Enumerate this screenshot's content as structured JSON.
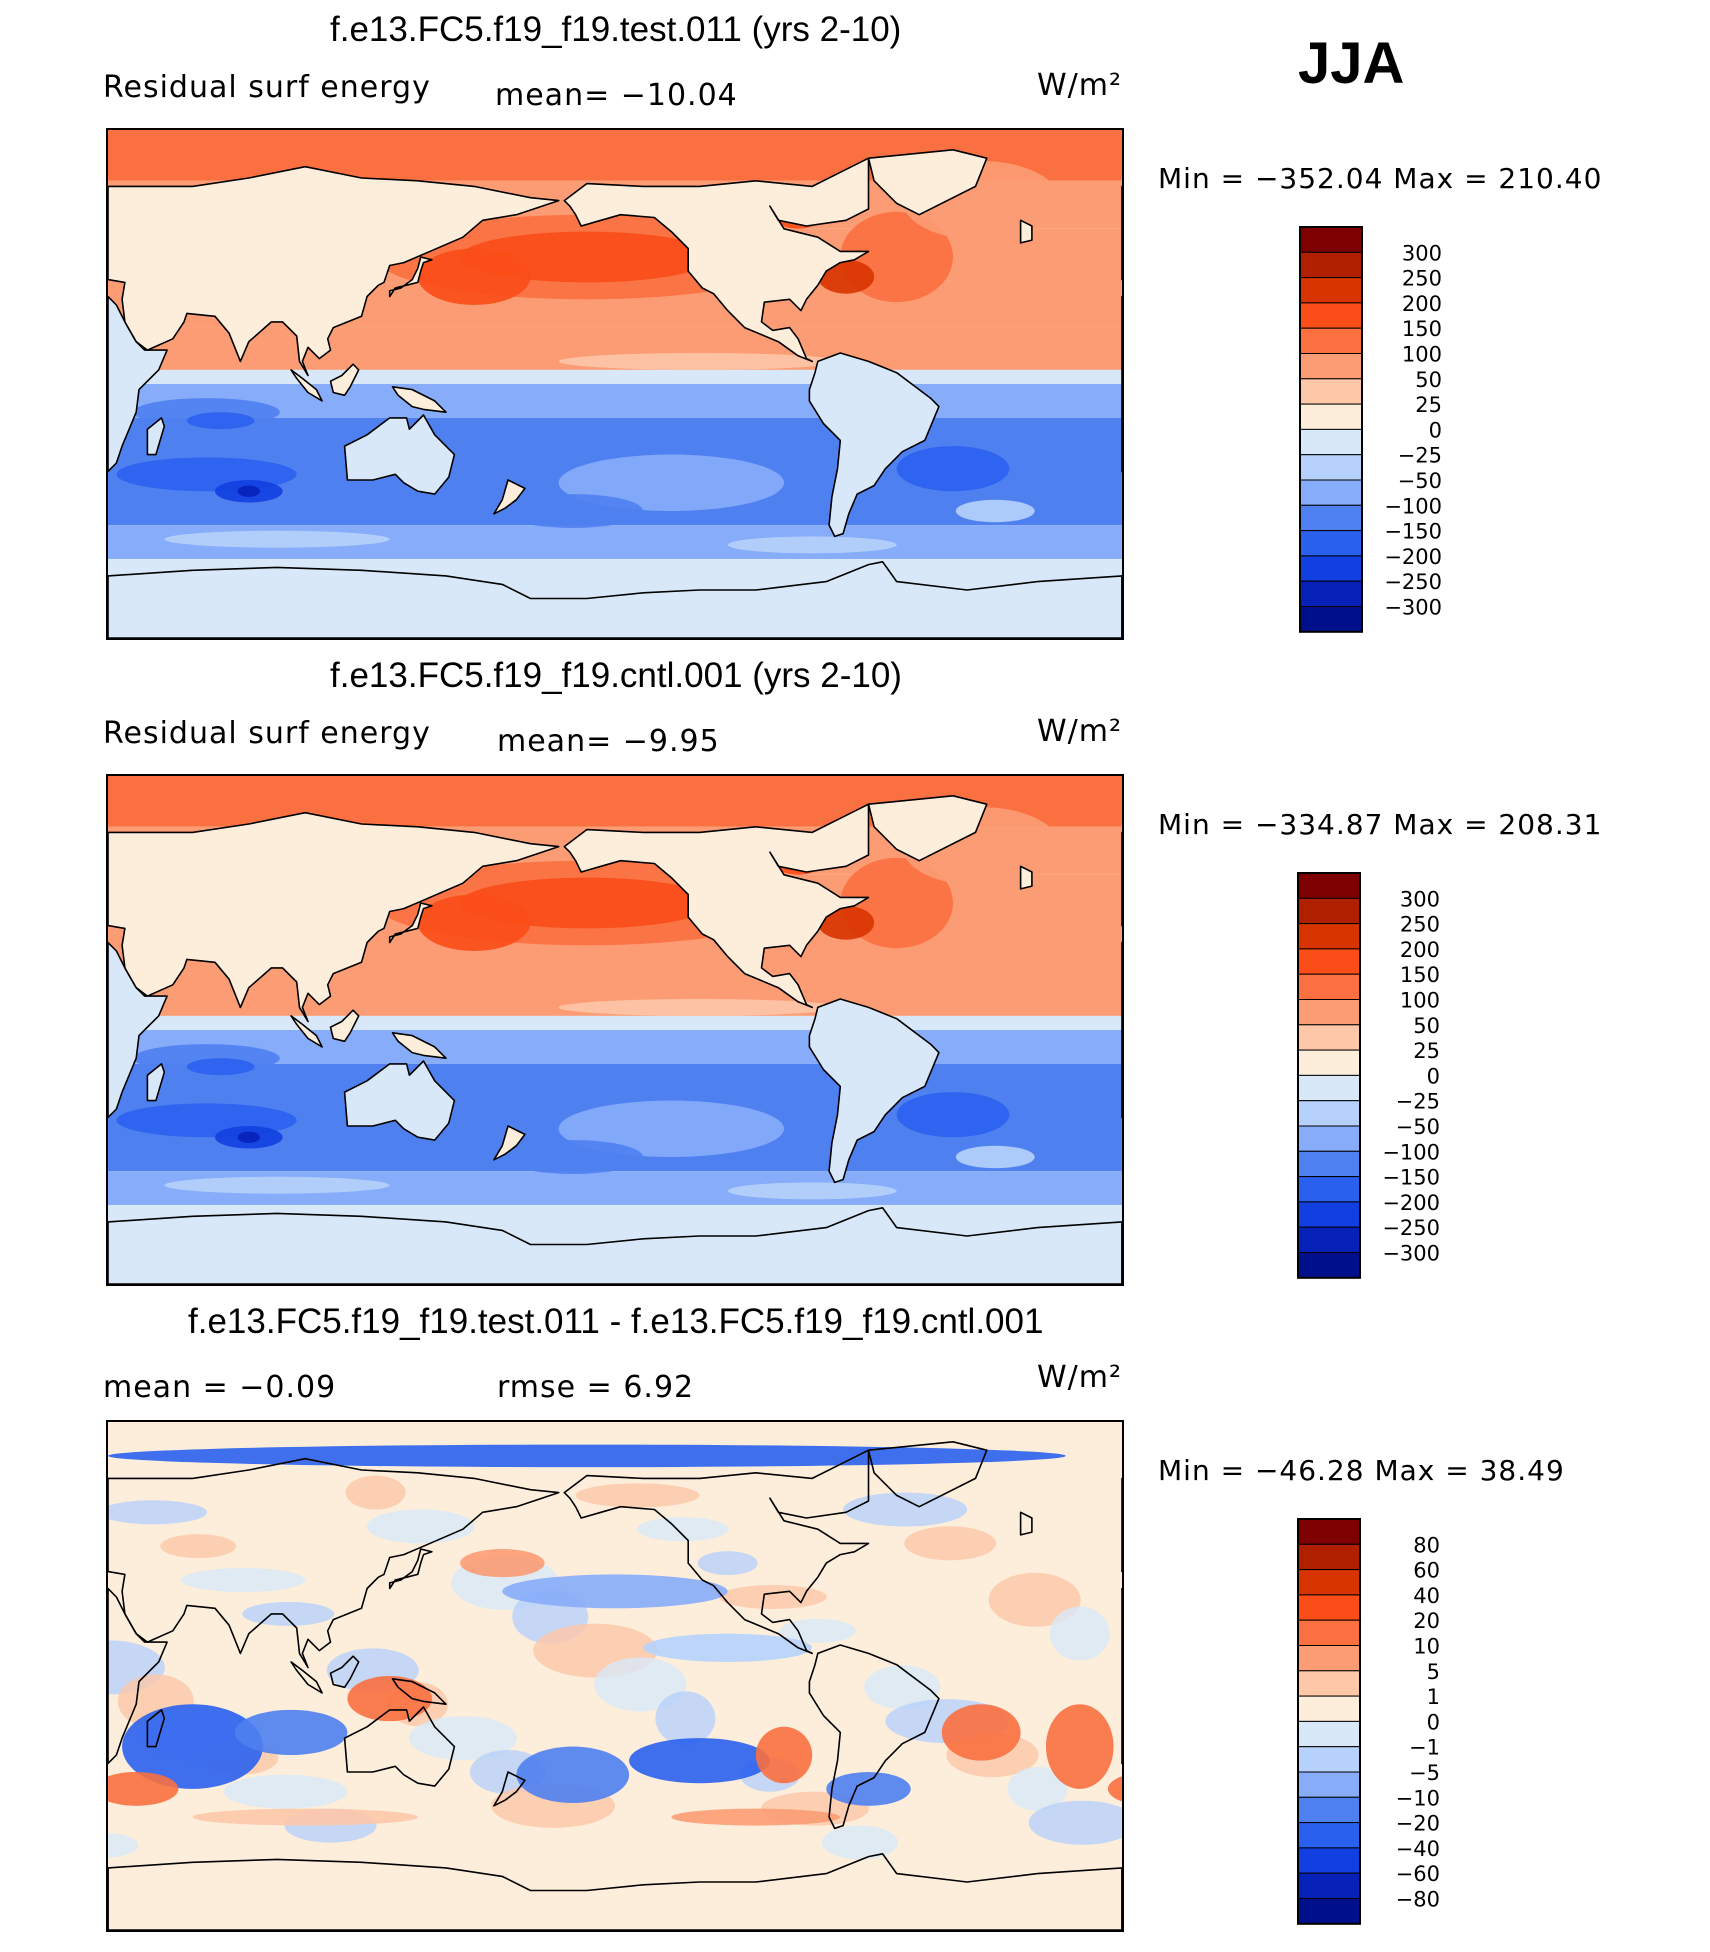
{
  "season": "JJA",
  "panels": [
    {
      "id": "test",
      "title": "f.e13.FC5.f19_f19.test.011 (yrs 2-10)",
      "left_label": "Residual surf energy",
      "mean_text": "mean=  −10.04",
      "units_text": "W/m²",
      "minmax_text": "Min  =  −352.04  Max  =  210.40"
    },
    {
      "id": "cntl",
      "title": "f.e13.FC5.f19_f19.cntl.001 (yrs 2-10)",
      "left_label": "Residual surf energy",
      "mean_text": "mean=   −9.95",
      "units_text": "W/m²",
      "minmax_text": "Min  =  −334.87  Max  =  208.31"
    },
    {
      "id": "diff",
      "title": "f.e13.FC5.f19_f19.test.011 - f.e13.FC5.f19_f19.cntl.001",
      "left_label": "mean  =    −0.09",
      "mean_text": "rmse  =     6.92",
      "units_text": "W/m²",
      "minmax_text": "Min  =  −46.28  Max  =    38.49"
    }
  ],
  "chart_data": [
    {
      "type": "heatmap",
      "title": "f.e13.FC5.f19_f19.test.011 (yrs 2-10)",
      "variable": "Residual surf energy",
      "units": "W/m²",
      "mean": -10.04,
      "min": -352.04,
      "max": 210.4,
      "colorbar_levels": [
        "300",
        "250",
        "200",
        "150",
        "100",
        "50",
        "25",
        "0",
        "−25",
        "−50",
        "−100",
        "−150",
        "−200",
        "−250",
        "−300"
      ],
      "colorbar_colors": [
        "#7f0000",
        "#b01f00",
        "#d83400",
        "#fa4d18",
        "#fa7040",
        "#fc9c74",
        "#fdc7a8",
        "#fdeedc",
        "#d8e8f8",
        "#b6d1fb",
        "#87acfa",
        "#4f80f0",
        "#2a60ee",
        "#123fe0",
        "#0521b8",
        "#00108a"
      ]
    },
    {
      "type": "heatmap",
      "title": "f.e13.FC5.f19_f19.cntl.001 (yrs 2-10)",
      "variable": "Residual surf energy",
      "units": "W/m²",
      "mean": -9.95,
      "min": -334.87,
      "max": 208.31,
      "colorbar_levels": [
        "300",
        "250",
        "200",
        "150",
        "100",
        "50",
        "25",
        "0",
        "−25",
        "−50",
        "−100",
        "−150",
        "−200",
        "−250",
        "−300"
      ],
      "colorbar_colors": [
        "#7f0000",
        "#b01f00",
        "#d83400",
        "#fa4d18",
        "#fa7040",
        "#fc9c74",
        "#fdc7a8",
        "#fdeedc",
        "#d8e8f8",
        "#b6d1fb",
        "#87acfa",
        "#4f80f0",
        "#2a60ee",
        "#123fe0",
        "#0521b8",
        "#00108a"
      ]
    },
    {
      "type": "heatmap",
      "title": "f.e13.FC5.f19_f19.test.011 - f.e13.FC5.f19_f19.cntl.001",
      "units": "W/m²",
      "mean": -0.09,
      "rmse": 6.92,
      "min": -46.28,
      "max": 38.49,
      "colorbar_levels": [
        "80",
        "60",
        "40",
        "20",
        "10",
        "5",
        "1",
        "0",
        "−1",
        "−5",
        "−10",
        "−20",
        "−40",
        "−60",
        "−80"
      ],
      "colorbar_colors": [
        "#7f0000",
        "#b01f00",
        "#d83400",
        "#fa4d18",
        "#fa7040",
        "#fc9c74",
        "#fdc7a8",
        "#fdeedc",
        "#d8e8f8",
        "#b6d1fb",
        "#87acfa",
        "#4f80f0",
        "#2a60ee",
        "#123fe0",
        "#0521b8",
        "#00108a"
      ]
    }
  ]
}
